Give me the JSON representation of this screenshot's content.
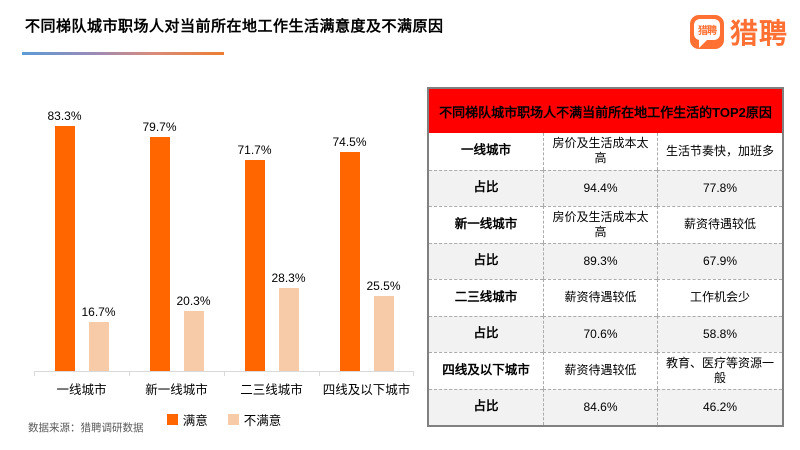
{
  "page": {
    "title": "不同梯队城市职场人对当前所在地工作生活满意度及不满原因",
    "logo_text": "猎聘",
    "logo_badge": "猎聘",
    "source": "数据来源：猎聘调研数据"
  },
  "colors": {
    "satisfied_bar": "#FF6600",
    "dissatisfied_bar": "#F7CBA8",
    "table_header_bg": "#FF0000",
    "brand_orange": "#FF7032",
    "underline_gradient_start": "#5B9BD5",
    "underline_gradient_end": "#ED7D31",
    "shaded_row_bg": "#F2F2F2"
  },
  "chart_data": {
    "type": "bar",
    "categories": [
      "一线城市",
      "新一线城市",
      "二三线城市",
      "四线及以下城市"
    ],
    "series": [
      {
        "name": "满意",
        "color": "#FF6600",
        "values": [
          83.3,
          79.7,
          71.7,
          74.5
        ],
        "labels": [
          "83.3%",
          "79.7%",
          "71.7%",
          "74.5%"
        ]
      },
      {
        "name": "不满意",
        "color": "#F7CBA8",
        "values": [
          16.7,
          20.3,
          28.3,
          25.5
        ],
        "labels": [
          "16.7%",
          "20.3%",
          "28.3%",
          "25.5%"
        ]
      }
    ],
    "ylim": [
      0,
      100
    ],
    "grid": false,
    "legend_position": "bottom",
    "xlabel": "",
    "ylabel": ""
  },
  "table": {
    "header": "不同梯队城市职场人不满当前所在地工作生活的TOP2原因",
    "rows": [
      {
        "cells": [
          "一线城市",
          "房价及生活成本太高",
          "生活节奏快，加班多"
        ]
      },
      {
        "cells": [
          "占比",
          "94.4%",
          "77.8%"
        ]
      },
      {
        "cells": [
          "新一线城市",
          "房价及生活成本太高",
          "薪资待遇较低"
        ]
      },
      {
        "cells": [
          "占比",
          "89.3%",
          "67.9%"
        ]
      },
      {
        "cells": [
          "二三线城市",
          "薪资待遇较低",
          "工作机会少"
        ]
      },
      {
        "cells": [
          "占比",
          "70.6%",
          "58.8%"
        ]
      },
      {
        "cells": [
          "四线及以下城市",
          "薪资待遇较低",
          "教育、医疗等资源一般"
        ]
      },
      {
        "cells": [
          "占比",
          "84.6%",
          "46.2%"
        ]
      }
    ]
  }
}
